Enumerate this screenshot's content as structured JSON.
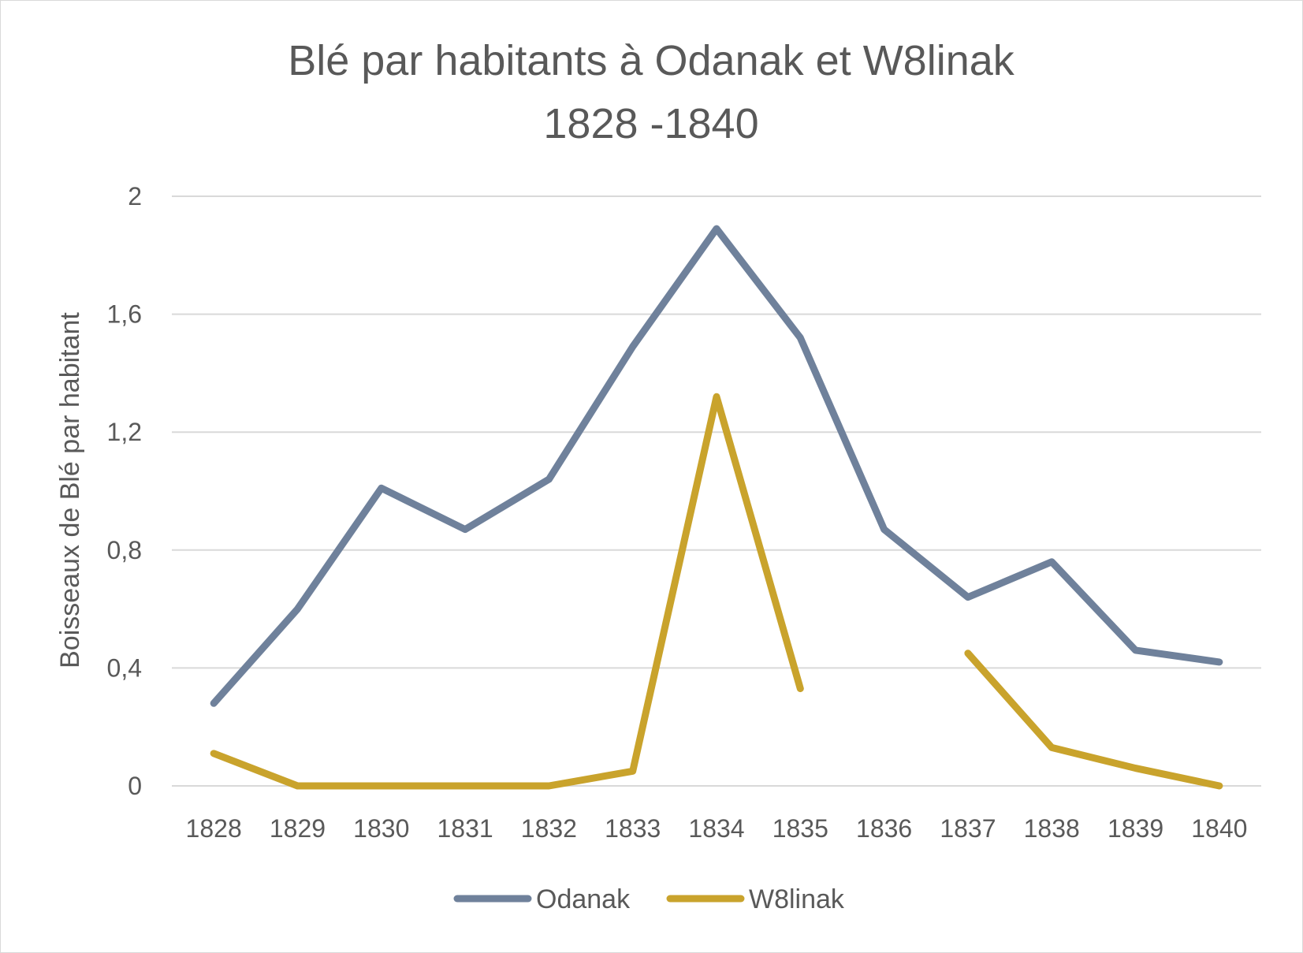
{
  "chart_data": {
    "type": "line",
    "title": "Blé par habitants à Odanak et W8linak",
    "subtitle": "1828 -1840",
    "xlabel": "",
    "ylabel": "Boisseaux de Blé par habitant",
    "categories": [
      "1828",
      "1829",
      "1830",
      "1831",
      "1832",
      "1833",
      "1834",
      "1835",
      "1836",
      "1837",
      "1838",
      "1839",
      "1840"
    ],
    "ylim": [
      0,
      2
    ],
    "yticks": [
      0,
      0.4,
      0.8,
      1.2,
      1.6,
      2
    ],
    "ytick_labels": [
      "0",
      "0,4",
      "0,8",
      "1,2",
      "1,6",
      "2"
    ],
    "grid": "horizontal",
    "legend_position": "bottom",
    "series": [
      {
        "name": "Odanak",
        "color": "#6f819b",
        "values": [
          0.28,
          0.6,
          1.01,
          0.87,
          1.04,
          1.49,
          1.89,
          1.52,
          0.87,
          0.64,
          0.76,
          0.46,
          0.42
        ]
      },
      {
        "name": "W8linak",
        "color": "#c9a32c",
        "values": [
          0.11,
          0.0,
          0.0,
          0.0,
          0.0,
          0.05,
          1.32,
          0.33,
          null,
          0.45,
          0.13,
          0.06,
          0.0
        ]
      }
    ]
  }
}
